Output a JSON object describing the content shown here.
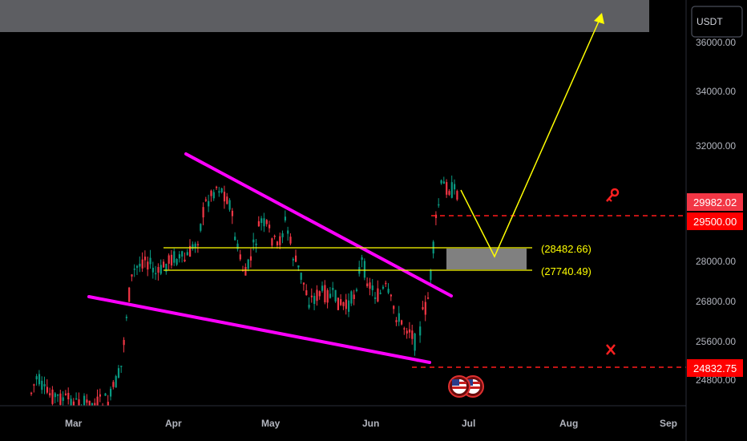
{
  "chart_data": {
    "type": "candlestick",
    "currency": "USDT",
    "y_axis_ticks": [
      "36000.00",
      "34000.00",
      "32000.00",
      "28000.00",
      "26800.00",
      "25600.00",
      "24800.00"
    ],
    "x_axis_ticks": [
      "Mar",
      "Apr",
      "May",
      "Jun",
      "Jul",
      "Aug",
      "Sep"
    ],
    "price_tags": [
      {
        "label": "29982.02",
        "value": 29982.02,
        "color": "#f23645"
      },
      {
        "label": "29500.00",
        "value": 29500.0,
        "color": "#ff0000"
      },
      {
        "label": "24832.75",
        "value": 24832.75,
        "color": "#ff0000"
      }
    ],
    "levels": [
      {
        "label": "(28482.66)",
        "value": 28482.66,
        "color": "#ffff00"
      },
      {
        "label": "(27740.49)",
        "value": 27740.49,
        "color": "#ffff00"
      }
    ],
    "colors": {
      "up": "#089981",
      "down": "#f23645",
      "wedge": "#ff00ff",
      "projection": "#ffff00",
      "target_zone": "#5d5e62",
      "demand_zone": "#808080",
      "dashed": "#ff1a1a"
    },
    "annotations": {
      "take_profit_icon": "key-icon",
      "stop_loss_icon": "x-mark-icon",
      "event_icon": "us-flag-icon"
    }
  }
}
